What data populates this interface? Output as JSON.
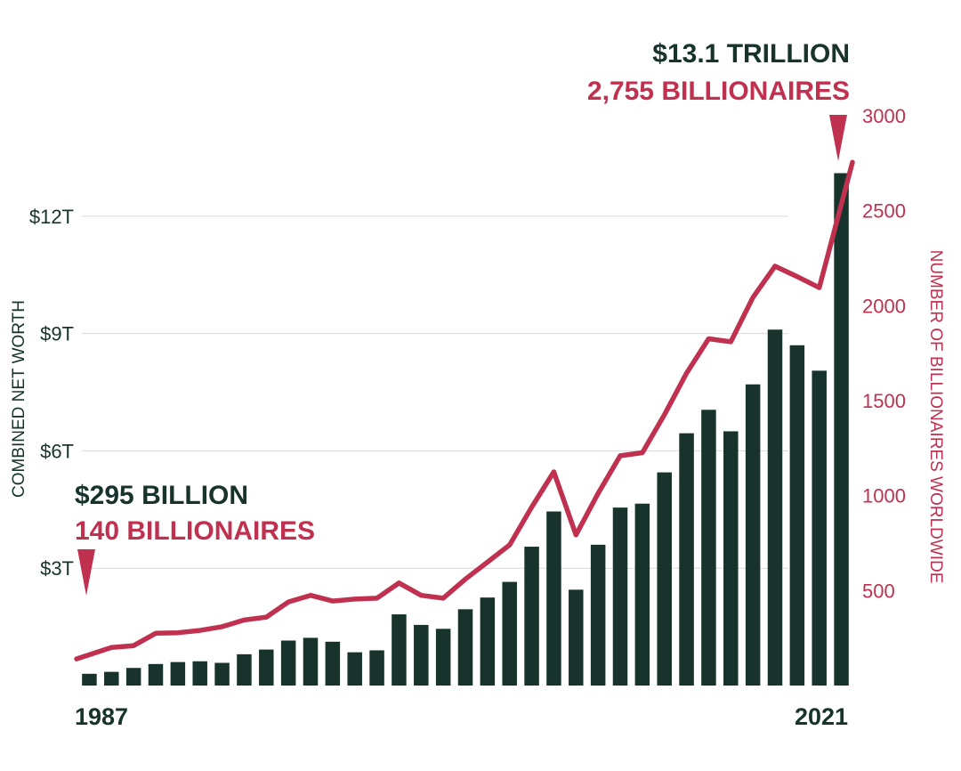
{
  "chart_data": {
    "type": "bar",
    "colors": {
      "bars": "#17332b",
      "line": "#c0304f",
      "grid": "#d9d9d9"
    },
    "years": [
      1987,
      1988,
      1989,
      1990,
      1991,
      1992,
      1993,
      1994,
      1995,
      1996,
      1997,
      1998,
      1999,
      2000,
      2001,
      2002,
      2003,
      2004,
      2005,
      2006,
      2007,
      2008,
      2009,
      2010,
      2011,
      2012,
      2013,
      2014,
      2015,
      2016,
      2017,
      2018,
      2019,
      2020,
      2021
    ],
    "x_tick_labels": [
      "1987",
      "2021"
    ],
    "series": [
      {
        "axis": "left",
        "type": "bar",
        "values": [
          0.3,
          0.35,
          0.45,
          0.55,
          0.6,
          0.62,
          0.58,
          0.8,
          0.92,
          1.15,
          1.22,
          1.12,
          0.85,
          0.9,
          1.82,
          1.55,
          1.45,
          1.95,
          2.25,
          2.65,
          3.55,
          4.45,
          2.45,
          3.6,
          4.55,
          4.65,
          5.45,
          6.45,
          7.05,
          6.5,
          7.7,
          9.1,
          8.7,
          8.05,
          13.1
        ]
      },
      {
        "axis": "right",
        "type": "line",
        "values": [
          140,
          200,
          210,
          275,
          278,
          290,
          310,
          345,
          360,
          440,
          475,
          445,
          455,
          460,
          540,
          475,
          460,
          560,
          650,
          740,
          940,
          1125,
          793,
          1011,
          1210,
          1226,
          1426,
          1645,
          1826,
          1810,
          2043,
          2208,
          2153,
          2095,
          2755
        ]
      }
    ],
    "left_axis": {
      "label": "COMBINED NET WORTH",
      "ylim": [
        0,
        14.5
      ],
      "ticks": [
        3,
        6,
        9,
        12
      ],
      "tick_labels": [
        "$3T",
        "$6T",
        "$9T",
        "$12T"
      ]
    },
    "right_axis": {
      "label": "NUMBER OF BILLIONAIRES WORLDWIDE",
      "ylim": [
        0,
        3000
      ],
      "ticks": [
        500,
        1000,
        1500,
        2000,
        2500,
        3000
      ],
      "tick_labels": [
        "500",
        "1000",
        "1500",
        "2000",
        "2500",
        "3000"
      ]
    },
    "grid": true,
    "annotations": {
      "start": {
        "worth": "$295 BILLION",
        "count": "140 BILLIONAIRES"
      },
      "end": {
        "worth": "$13.1 TRILLION",
        "count": "2,755 BILLIONAIRES"
      }
    }
  }
}
